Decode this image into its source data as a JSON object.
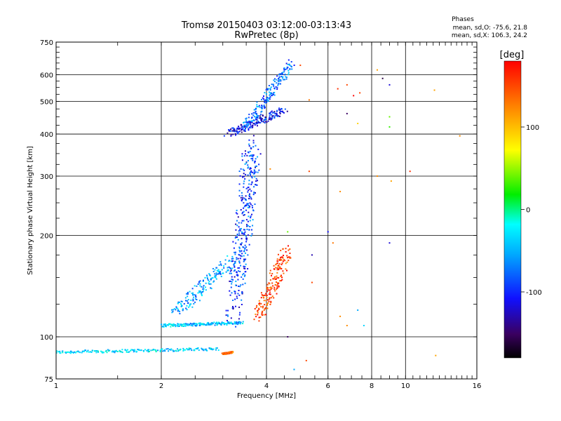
{
  "chart_data": {
    "type": "scatter",
    "title": "Tromsø 20150403 03:12:00-03:13:43",
    "subtitle": "RwPretec (8p)",
    "xlabel": "Frequency [MHz]",
    "ylabel": "Stationary phase Virtual Height [km]",
    "x_scale": "log2",
    "y_scale": "log",
    "xlim": [
      1,
      16
    ],
    "ylim": [
      75,
      750
    ],
    "x_ticks": [
      "1",
      "2",
      "4",
      "6",
      "8",
      "10",
      "16"
    ],
    "y_ticks": [
      "75",
      "100",
      "200",
      "300",
      "400",
      "500",
      "600",
      "750"
    ],
    "grid": true,
    "phase_stats": {
      "heading": "Phases",
      "o_line": "mean, sd,O: -75.6, 21.8",
      "x_line": "mean, sd,X: 106.3, 24.2"
    },
    "colorbar": {
      "label": "[deg]",
      "range": [
        -180,
        180
      ],
      "ticks": [
        "100",
        "0",
        "-100"
      ],
      "colormap": "rainbow"
    },
    "traces": [
      {
        "f_start": 1.0,
        "f_end": 2.9,
        "h_start": 90,
        "h_end": 92,
        "phase": -40,
        "spread": 0.02
      },
      {
        "f_start": 2.0,
        "f_end": 3.4,
        "h_start": 108,
        "h_end": 110,
        "phase": -45,
        "spread": 0.02
      },
      {
        "f_start": 2.2,
        "f_end": 3.2,
        "h_start": 118,
        "h_end": 170,
        "phase": -60,
        "spread": 0.08
      },
      {
        "f_start": 3.2,
        "f_end": 3.6,
        "h_start": 110,
        "h_end": 380,
        "phase": -100,
        "spread": 0.1
      },
      {
        "f_start": 3.3,
        "f_end": 3.7,
        "h_start": 140,
        "h_end": 360,
        "phase": -90,
        "spread": 0.1
      },
      {
        "f_start": 3.1,
        "f_end": 4.5,
        "h_start": 400,
        "h_end": 470,
        "phase": -110,
        "spread": 0.05
      },
      {
        "f_start": 3.5,
        "f_end": 4.7,
        "h_start": 420,
        "h_end": 650,
        "phase": -80,
        "spread": 0.06
      },
      {
        "f_start": 3.0,
        "f_end": 3.2,
        "h_start": 89,
        "h_end": 90,
        "phase": 140,
        "spread": 0.01
      },
      {
        "f_start": 3.8,
        "f_end": 4.6,
        "h_start": 115,
        "h_end": 180,
        "phase": 150,
        "spread": 0.08
      }
    ],
    "scatter_points": [
      {
        "x": 5.0,
        "y": 640,
        "phase": 150
      },
      {
        "x": 5.3,
        "y": 505,
        "phase": 130
      },
      {
        "x": 6.4,
        "y": 545,
        "phase": 160
      },
      {
        "x": 6.8,
        "y": 560,
        "phase": 150
      },
      {
        "x": 7.1,
        "y": 520,
        "phase": 180
      },
      {
        "x": 7.4,
        "y": 530,
        "phase": 150
      },
      {
        "x": 8.3,
        "y": 620,
        "phase": 110
      },
      {
        "x": 8.6,
        "y": 585,
        "phase": -160
      },
      {
        "x": 9.0,
        "y": 560,
        "phase": -120
      },
      {
        "x": 9.0,
        "y": 450,
        "phase": 40
      },
      {
        "x": 9.0,
        "y": 420,
        "phase": 30
      },
      {
        "x": 12.1,
        "y": 540,
        "phase": 110
      },
      {
        "x": 14.3,
        "y": 395,
        "phase": 120
      },
      {
        "x": 10.3,
        "y": 310,
        "phase": 160
      },
      {
        "x": 9.1,
        "y": 290,
        "phase": 110
      },
      {
        "x": 6.5,
        "y": 270,
        "phase": 120
      },
      {
        "x": 6.8,
        "y": 460,
        "phase": -150
      },
      {
        "x": 7.3,
        "y": 430,
        "phase": 90
      },
      {
        "x": 6.2,
        "y": 190,
        "phase": 130
      },
      {
        "x": 6.0,
        "y": 205,
        "phase": -110
      },
      {
        "x": 6.5,
        "y": 115,
        "phase": 120
      },
      {
        "x": 6.8,
        "y": 108,
        "phase": 120
      },
      {
        "x": 7.3,
        "y": 120,
        "phase": -60
      },
      {
        "x": 7.6,
        "y": 108,
        "phase": -40
      },
      {
        "x": 4.6,
        "y": 100,
        "phase": -150
      },
      {
        "x": 5.2,
        "y": 85,
        "phase": 150
      },
      {
        "x": 4.8,
        "y": 80,
        "phase": -60
      },
      {
        "x": 5.4,
        "y": 175,
        "phase": -130
      },
      {
        "x": 5.4,
        "y": 145,
        "phase": 150
      },
      {
        "x": 4.6,
        "y": 205,
        "phase": 40
      },
      {
        "x": 8.3,
        "y": 300,
        "phase": 120
      },
      {
        "x": 9.0,
        "y": 190,
        "phase": -120
      },
      {
        "x": 12.2,
        "y": 88,
        "phase": 110
      },
      {
        "x": 5.3,
        "y": 310,
        "phase": 150
      },
      {
        "x": 4.1,
        "y": 315,
        "phase": 120
      }
    ]
  }
}
